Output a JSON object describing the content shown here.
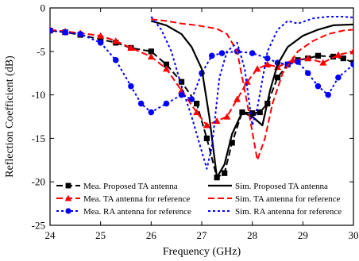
{
  "chart_data": {
    "type": "line",
    "title": "",
    "xlabel": "Frequency (GHz)",
    "ylabel": "Reflection Coefficient (dB)",
    "xlim": [
      24,
      30
    ],
    "ylim": [
      -25,
      0
    ],
    "xticks": [
      "24",
      "25",
      "26",
      "27",
      "28",
      "29",
      "30"
    ],
    "yticks": [
      "0",
      "-5",
      "-10",
      "-15",
      "-20",
      "-25"
    ],
    "grid": false,
    "legend_placement": "bottom",
    "series": [
      {
        "name": "Mea. Proposed TA antenna",
        "color": "#000000",
        "style": "dash",
        "marker": "square",
        "x": [
          24.0,
          24.3,
          24.6,
          25.0,
          25.3,
          25.6,
          26.0,
          26.3,
          26.6,
          26.9,
          27.1,
          27.3,
          27.45,
          27.6,
          27.8,
          28.0,
          28.15,
          28.3,
          28.5,
          28.7,
          28.9,
          29.1,
          29.3,
          29.6,
          29.8,
          30.0
        ],
        "y": [
          -2.6,
          -2.8,
          -3.1,
          -3.6,
          -4.0,
          -4.6,
          -5.0,
          -6.5,
          -8.5,
          -11.0,
          -15.0,
          -19.5,
          -19.0,
          -15.5,
          -12.0,
          -12.1,
          -12.0,
          -11.0,
          -8.0,
          -6.5,
          -6.0,
          -5.8,
          -5.5,
          -5.6,
          -5.8,
          -6.3
        ]
      },
      {
        "name": "Mea. TA antenna for reference",
        "color": "#ff0000",
        "style": "dash",
        "marker": "triangle",
        "x": [
          24.0,
          24.3,
          24.6,
          25.0,
          25.3,
          25.6,
          26.0,
          26.3,
          26.6,
          26.9,
          27.1,
          27.3,
          27.5,
          27.7,
          27.9,
          28.1,
          28.3,
          28.5,
          28.8,
          29.1,
          29.4,
          29.7,
          30.0
        ],
        "y": [
          -2.5,
          -2.7,
          -2.9,
          -3.2,
          -3.8,
          -4.6,
          -5.6,
          -7.0,
          -9.5,
          -12.0,
          -13.5,
          -13.0,
          -12.5,
          -10.5,
          -8.5,
          -7.0,
          -6.5,
          -6.8,
          -6.0,
          -5.8,
          -6.3,
          -5.4,
          -5.0
        ]
      },
      {
        "name": "Mea. RA antenna for reference",
        "color": "#0000ff",
        "style": "dot",
        "marker": "circle",
        "x": [
          24.0,
          24.3,
          24.6,
          25.0,
          25.3,
          25.6,
          25.8,
          26.0,
          26.3,
          26.6,
          26.8,
          27.0,
          27.2,
          27.4,
          27.7,
          28.0,
          28.3,
          28.5,
          28.7,
          28.9,
          29.1,
          29.3,
          29.5,
          29.7,
          30.0
        ],
        "y": [
          -2.6,
          -2.8,
          -3.0,
          -4.0,
          -6.0,
          -9.0,
          -11.0,
          -12.0,
          -11.0,
          -10.0,
          -10.5,
          -7.5,
          -5.5,
          -5.2,
          -5.0,
          -5.2,
          -5.8,
          -6.3,
          -6.5,
          -6.2,
          -7.5,
          -9.0,
          -10.0,
          -8.0,
          -6.5
        ]
      },
      {
        "name": "Sim. Proposed TA antenna",
        "color": "#000000",
        "style": "solid",
        "marker": "none",
        "x": [
          26.0,
          26.3,
          26.6,
          26.8,
          27.0,
          27.15,
          27.3,
          27.45,
          27.6,
          27.8,
          28.0,
          28.2,
          28.35,
          28.5,
          28.7,
          29.0,
          29.3,
          29.6,
          30.0
        ],
        "y": [
          -1.5,
          -2.0,
          -3.0,
          -4.5,
          -7.0,
          -12.5,
          -19.5,
          -18.0,
          -14.5,
          -12.0,
          -12.5,
          -13.5,
          -9.5,
          -6.5,
          -4.5,
          -3.2,
          -2.5,
          -2.0,
          -1.9
        ]
      },
      {
        "name": "Sim. TA antenna for reference",
        "color": "#ff0000",
        "style": "dash",
        "marker": "none",
        "x": [
          26.0,
          26.3,
          26.6,
          26.9,
          27.1,
          27.3,
          27.5,
          27.7,
          27.9,
          28.1,
          28.25,
          28.4,
          28.6,
          28.9,
          29.2,
          29.5,
          29.8,
          30.0
        ],
        "y": [
          -1.3,
          -1.5,
          -1.8,
          -2.0,
          -2.2,
          -2.4,
          -3.0,
          -5.0,
          -11.0,
          -17.5,
          -15.0,
          -11.0,
          -7.5,
          -5.0,
          -3.8,
          -3.0,
          -2.6,
          -2.5
        ]
      },
      {
        "name": "Sim. RA antenna for reference",
        "color": "#0000ff",
        "style": "dot",
        "marker": "none",
        "x": [
          26.0,
          26.2,
          26.4,
          26.6,
          26.8,
          26.95,
          27.1,
          27.2,
          27.35,
          27.5,
          27.7,
          27.85,
          28.0,
          28.1,
          28.3,
          28.5,
          28.7,
          28.9,
          29.2,
          29.5,
          29.8,
          30.0
        ],
        "y": [
          -1.0,
          -2.5,
          -5.0,
          -9.0,
          -12.5,
          -15.5,
          -18.5,
          -16.0,
          -8.0,
          -5.0,
          -4.0,
          -7.0,
          -13.5,
          -11.5,
          -5.0,
          -2.5,
          -1.5,
          -1.8,
          -1.2,
          -1.0,
          -1.0,
          -1.1
        ]
      }
    ]
  }
}
